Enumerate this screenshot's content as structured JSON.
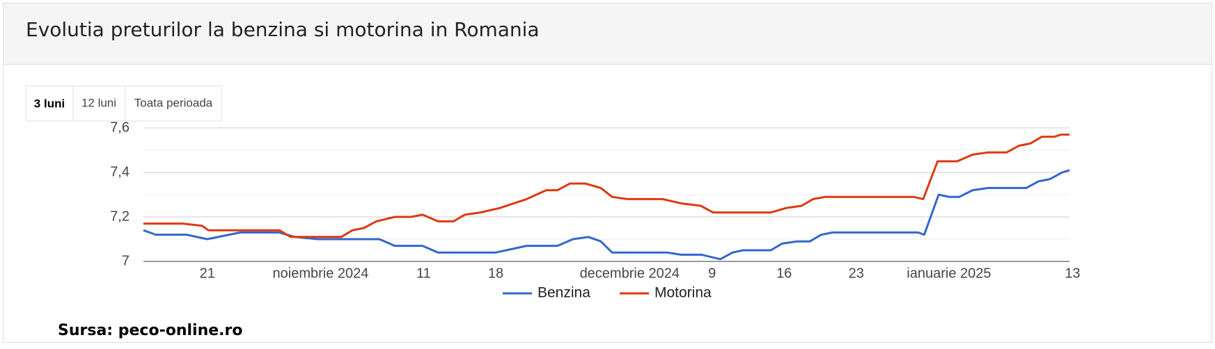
{
  "header": {
    "title": "Evolutia preturilor la benzina si motorina in Romania"
  },
  "range_buttons": [
    "3 luni",
    "12 luni",
    "Toata perioada"
  ],
  "source": "Sursa: peco-online.ro",
  "chart_data": {
    "type": "line",
    "xlim": [
      14.8,
      104.7
    ],
    "xticks": [
      {
        "value": 21,
        "label": "21"
      },
      {
        "value": 32,
        "label": "noiembrie 2024"
      },
      {
        "value": 42,
        "label": "11"
      },
      {
        "value": 49,
        "label": "18"
      },
      {
        "value": 62,
        "label": "decembrie 2024"
      },
      {
        "value": 70,
        "label": "9"
      },
      {
        "value": 77,
        "label": "16"
      },
      {
        "value": 84,
        "label": "23"
      },
      {
        "value": 93,
        "label": "ianuarie 2025"
      },
      {
        "value": 105,
        "label": "13"
      }
    ],
    "ylim": [
      7,
      7.6
    ],
    "yticks": [
      7,
      {
        "value": 7.2,
        "label": "7,2"
      },
      {
        "value": 7.4,
        "label": "7,4"
      },
      {
        "value": 7.6,
        "label": "7,6"
      }
    ],
    "minor_yticks": [
      7.1,
      7.3,
      7.5
    ],
    "grid": true,
    "legend": "bottom",
    "series": [
      {
        "name": "Benzina",
        "color": "#3366cc",
        "x": [
          14.8,
          16,
          19,
          21,
          24.2,
          28,
          29.5,
          31.7,
          37.7,
          39.2,
          41.9,
          43.4,
          49,
          52,
          55,
          56.5,
          58,
          59.2,
          60.3,
          65.6,
          67,
          69,
          70.8,
          72,
          73,
          75.7,
          76.8,
          78.3,
          79.5,
          80.6,
          81.7,
          90,
          90.6,
          92,
          93,
          94,
          95.3,
          96.8,
          100.5,
          101.7,
          102.8,
          104,
          104.7
        ],
        "values": [
          7.14,
          7.12,
          7.12,
          7.1,
          7.13,
          7.13,
          7.11,
          7.1,
          7.1,
          7.07,
          7.07,
          7.04,
          7.04,
          7.07,
          7.07,
          7.1,
          7.11,
          7.09,
          7.04,
          7.04,
          7.03,
          7.03,
          7.01,
          7.04,
          7.05,
          7.05,
          7.08,
          7.09,
          7.09,
          7.12,
          7.13,
          7.13,
          7.12,
          7.3,
          7.29,
          7.29,
          7.32,
          7.33,
          7.33,
          7.36,
          7.37,
          7.4,
          7.41
        ]
      },
      {
        "name": "Motorina",
        "color": "#dc3912",
        "x": [
          14.8,
          18.6,
          20.5,
          21.1,
          28,
          29.1,
          34,
          35.1,
          36.2,
          37.4,
          39.2,
          40.8,
          41.9,
          43.4,
          44.9,
          46,
          47.5,
          49.4,
          52,
          53.9,
          55,
          56.2,
          57.7,
          59.2,
          60.3,
          61.8,
          65.2,
          67.1,
          68.9,
          70.1,
          75.7,
          77.2,
          78.7,
          79.8,
          81,
          89.6,
          90.5,
          91.9,
          93.8,
          95.3,
          96.8,
          98.6,
          99.8,
          100.9,
          102,
          103.2,
          103.9,
          104.7
        ],
        "values": [
          7.17,
          7.17,
          7.16,
          7.14,
          7.14,
          7.11,
          7.11,
          7.14,
          7.15,
          7.18,
          7.2,
          7.2,
          7.21,
          7.18,
          7.18,
          7.21,
          7.22,
          7.24,
          7.28,
          7.32,
          7.32,
          7.35,
          7.35,
          7.33,
          7.29,
          7.28,
          7.28,
          7.26,
          7.25,
          7.22,
          7.22,
          7.24,
          7.25,
          7.28,
          7.29,
          7.29,
          7.28,
          7.45,
          7.45,
          7.48,
          7.49,
          7.49,
          7.52,
          7.53,
          7.56,
          7.56,
          7.57,
          7.57
        ]
      }
    ]
  }
}
